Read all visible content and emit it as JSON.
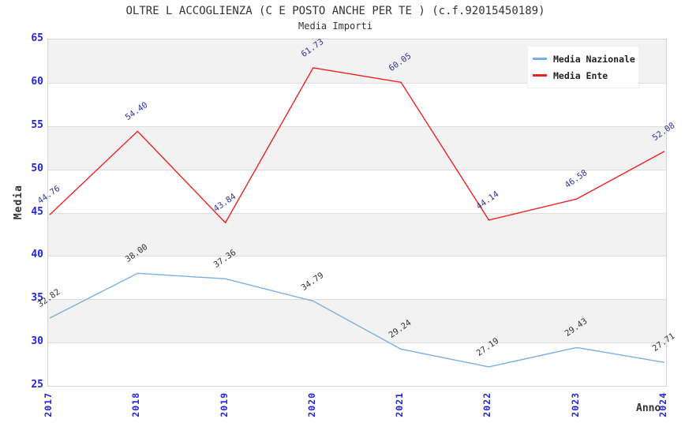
{
  "header": {
    "title": "OLTRE L ACCOGLIENZA (C E POSTO ANCHE PER TE ) (c.f.92015450189)",
    "subtitle": "Media Importi"
  },
  "colors": {
    "axis_tick_text": "#2525dd",
    "band_gray": "#f2f2f2",
    "band_white": "#ffffff",
    "gridline": "#dddddd",
    "title_text": "#333333"
  },
  "chart_data": {
    "type": "line",
    "title": "OLTRE L ACCOGLIENZA (C E POSTO ANCHE PER TE ) (c.f.92015450189)",
    "subtitle": "Media Importi",
    "xlabel": "Anno",
    "ylabel": "Media",
    "x": [
      "2017",
      "2018",
      "2019",
      "2020",
      "2021",
      "2022",
      "2023",
      "2024"
    ],
    "series": [
      {
        "name": "Media Nazionale",
        "color": "#7aafe1",
        "label_color": "#333333",
        "values": [
          32.82,
          38.0,
          37.36,
          34.79,
          29.24,
          27.19,
          29.43,
          27.71
        ],
        "labels": [
          "32.82",
          "38.00",
          "37.36",
          "34.79",
          "29.24",
          "27.19",
          "29.43",
          "27.71"
        ]
      },
      {
        "name": "Media Ente",
        "color": "#ee2222",
        "label_color": "#32329e",
        "values": [
          44.76,
          54.4,
          43.84,
          61.73,
          60.05,
          44.14,
          46.58,
          52.08
        ],
        "labels": [
          "44.76",
          "54.40",
          "43.84",
          "61.73",
          "60.05",
          "44.14",
          "46.58",
          "52.08"
        ]
      }
    ],
    "ylim": [
      25,
      65
    ],
    "ytick_step": 5,
    "y_ticks": [
      "65",
      "60",
      "55",
      "50",
      "45",
      "40",
      "35",
      "30",
      "25"
    ],
    "grid": "horizontal alternating bands, gray/white",
    "legend_position": "top-right"
  }
}
